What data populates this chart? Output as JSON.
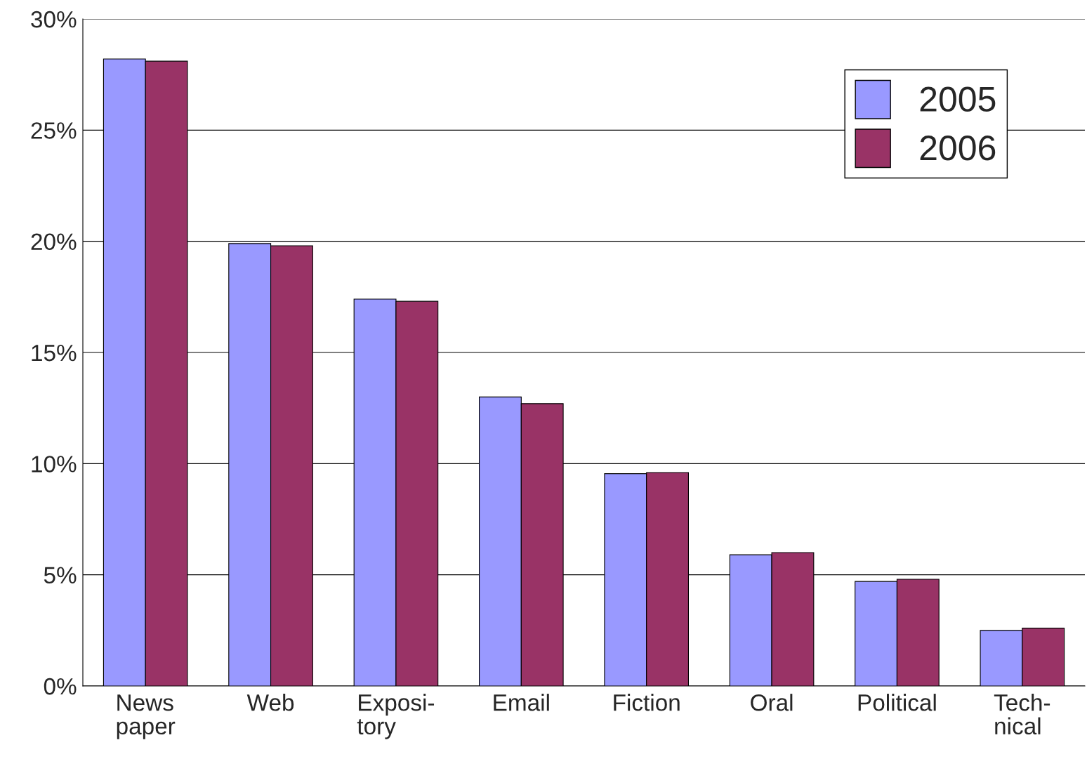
{
  "chart_data": {
    "type": "bar",
    "categories": [
      "News\npaper",
      "Web",
      "Exposi-\ntory",
      "Email",
      "Fiction",
      "Oral",
      "Political",
      "Tech-\nnical"
    ],
    "series": [
      {
        "name": "2005",
        "color": "#9999ff",
        "values": [
          28.2,
          19.9,
          17.4,
          13.0,
          9.55,
          5.9,
          4.7,
          2.5
        ]
      },
      {
        "name": "2006",
        "color": "#993366",
        "values": [
          28.1,
          19.8,
          17.3,
          12.7,
          9.6,
          6.0,
          4.8,
          2.6
        ]
      }
    ],
    "ylim": [
      0,
      30
    ],
    "yticks": [
      {
        "value": 0,
        "label": "0%"
      },
      {
        "value": 5,
        "label": "5%"
      },
      {
        "value": 10,
        "label": "10%"
      },
      {
        "value": 15,
        "label": "15%"
      },
      {
        "value": 20,
        "label": "20%"
      },
      {
        "value": 25,
        "label": "25%"
      },
      {
        "value": 30,
        "label": "30%"
      }
    ],
    "grid": "y",
    "legend": "top right"
  }
}
